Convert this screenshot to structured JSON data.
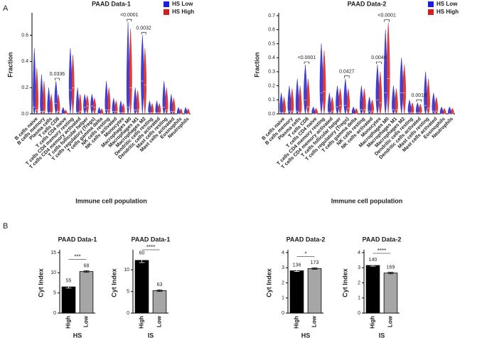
{
  "panel_labels": [
    "A",
    "B"
  ],
  "chart_data": [
    {
      "type": "violin",
      "title": "PAAD Data-1",
      "xlabel": "Immune cell population",
      "ylabel": "Fraction",
      "legend": "upper right",
      "categories": [
        "B cells naive",
        "B cells memory",
        "Plasma cells",
        "T cells CD8",
        "T cells CD4 naive",
        "T cells CD4 memory resting",
        "T cells CD4 memory activated",
        "T cells follicular helper",
        "T cells regulatory (Tregs)",
        "T cells gamma delta",
        "NK cells resting",
        "NK cells activated",
        "Monocytes",
        "Macrophages M0",
        "Macrophages M1",
        "Macrophages M2",
        "Dendritic cells resting",
        "Dendritic cells activated",
        "Mast cells resting",
        "Mast cells activated",
        "Eosinophils",
        "Neutrophils"
      ],
      "series": [
        {
          "name": "HS Low",
          "color": "#1f1fd1",
          "values": [
            0.05,
            0.02,
            0.01,
            0.08,
            0.0,
            0.18,
            0.01,
            0.05,
            0.06,
            0.0,
            0.03,
            0.02,
            0.01,
            0.05,
            0.03,
            0.25,
            0.01,
            0.01,
            0.05,
            0.02,
            0.0,
            0.0
          ],
          "upper": [
            0.5,
            0.3,
            0.2,
            0.25,
            0.05,
            0.5,
            0.2,
            0.15,
            0.15,
            0.05,
            0.25,
            0.12,
            0.1,
            0.7,
            0.2,
            0.6,
            0.1,
            0.1,
            0.25,
            0.15,
            0.05,
            0.05
          ]
        },
        {
          "name": "HS High",
          "color": "#d11f1f",
          "values": [
            0.03,
            0.02,
            0.01,
            0.02,
            0.0,
            0.2,
            0.02,
            0.06,
            0.05,
            0.0,
            0.03,
            0.02,
            0.01,
            0.2,
            0.03,
            0.22,
            0.01,
            0.01,
            0.03,
            0.02,
            0.0,
            0.0
          ],
          "upper": [
            0.35,
            0.25,
            0.15,
            0.15,
            0.03,
            0.45,
            0.15,
            0.14,
            0.12,
            0.04,
            0.2,
            0.1,
            0.08,
            0.65,
            0.18,
            0.5,
            0.08,
            0.08,
            0.2,
            0.12,
            0.04,
            0.04
          ]
        }
      ],
      "ylim": [
        0,
        0.75
      ],
      "yticks": [
        {
          "value": 0,
          "label": "0.0"
        },
        0.2,
        0.4,
        0.6
      ],
      "annotations": [
        {
          "category": "T cells CD8",
          "label": "0.0336"
        },
        {
          "category": "Macrophages M0",
          "label": "<0.0001"
        },
        {
          "category": "Macrophages M2",
          "label": "0.0032"
        }
      ]
    },
    {
      "type": "violin",
      "title": "PAAD Data-2",
      "xlabel": "Immune cell population",
      "ylabel": "Fraction",
      "legend": "upper right",
      "categories": [
        "B cells naive",
        "B cells memory",
        "Plasma cells",
        "T cells CD8",
        "T cells CD4 naive",
        "T cells CD4 memory resting",
        "T cells CD4 memory activated",
        "T cells follicular helper",
        "T cells regulatory (Tregs)",
        "T cells gamma delta",
        "NK cells resting",
        "NK cells activated",
        "Monocytes",
        "Macrophages M0",
        "Macrophages M1",
        "Macrophages M2",
        "Dendritic cells resting",
        "Dendritic cells activated",
        "Mast cells resting",
        "Mast cells activated",
        "Eosinophils",
        "Neutrophils"
      ],
      "series": [
        {
          "name": "HS Low",
          "color": "#1f1fd1",
          "values": [
            0.01,
            0.02,
            0.02,
            0.1,
            0.0,
            0.15,
            0.01,
            0.05,
            0.06,
            0.0,
            0.03,
            0.02,
            0.1,
            0.15,
            0.03,
            0.15,
            0.01,
            0.01,
            0.06,
            0.02,
            0.0,
            0.0
          ],
          "upper": [
            0.15,
            0.2,
            0.25,
            0.35,
            0.05,
            0.5,
            0.15,
            0.2,
            0.25,
            0.05,
            0.2,
            0.12,
            0.35,
            0.6,
            0.2,
            0.4,
            0.1,
            0.08,
            0.3,
            0.15,
            0.05,
            0.05
          ]
        },
        {
          "name": "HS High",
          "color": "#d11f1f",
          "values": [
            0.01,
            0.02,
            0.01,
            0.05,
            0.0,
            0.16,
            0.02,
            0.06,
            0.04,
            0.0,
            0.03,
            0.02,
            0.08,
            0.25,
            0.03,
            0.15,
            0.01,
            0.01,
            0.04,
            0.02,
            0.0,
            0.0
          ],
          "upper": [
            0.12,
            0.18,
            0.2,
            0.25,
            0.04,
            0.45,
            0.12,
            0.18,
            0.18,
            0.04,
            0.18,
            0.1,
            0.3,
            0.65,
            0.18,
            0.35,
            0.08,
            0.07,
            0.25,
            0.12,
            0.04,
            0.04
          ]
        }
      ],
      "ylim": [
        0,
        0.7
      ],
      "yticks": [
        {
          "value": 0,
          "label": "0.0"
        },
        0.1,
        0.2,
        0.3,
        0.4,
        0.5,
        0.6,
        0.7
      ],
      "annotations": [
        {
          "category": "T cells CD8",
          "label": "<0.0001"
        },
        {
          "category": "T cells regulatory (Tregs)",
          "label": "0.0427"
        },
        {
          "category": "Monocytes",
          "label": "0.0040"
        },
        {
          "category": "Macrophages M0",
          "label": "<0.0001"
        },
        {
          "category": "Dendritic cells activated",
          "label": "0.0018"
        }
      ]
    },
    {
      "type": "bar",
      "title": "PAAD Data-1",
      "xlabel": "HS",
      "ylabel": "Cyt Index",
      "categories": [
        "High",
        "Low"
      ],
      "values": [
        6.5,
        10.3
      ],
      "errors": [
        0.3,
        0.2
      ],
      "colors": [
        "#000000",
        "#a6a6a6"
      ],
      "n": [
        55,
        68
      ],
      "significance": "***",
      "ylim": [
        0,
        15
      ],
      "yticks": [
        0,
        5,
        10,
        15
      ]
    },
    {
      "type": "bar",
      "title": "PAAD Data-1",
      "xlabel": "IS",
      "ylabel": "Cyt Index",
      "categories": [
        "High",
        "Low"
      ],
      "values": [
        12.2,
        5.2
      ],
      "errors": [
        0.5,
        0.2
      ],
      "colors": [
        "#000000",
        "#a6a6a6"
      ],
      "n": [
        60,
        63
      ],
      "significance": "****",
      "ylim": [
        0,
        14
      ],
      "yticks": [
        0,
        5,
        10
      ]
    },
    {
      "type": "bar",
      "title": "PAAD Data-2",
      "xlabel": "HS",
      "ylabel": "Cyt Index",
      "categories": [
        "High",
        "Low"
      ],
      "values": [
        2.8,
        2.95
      ],
      "errors": [
        0.05,
        0.05
      ],
      "colors": [
        "#000000",
        "#a6a6a6"
      ],
      "n": [
        136,
        173
      ],
      "significance": "*",
      "ylim": [
        0,
        4
      ],
      "yticks": [
        0,
        1,
        2,
        3,
        4
      ]
    },
    {
      "type": "bar",
      "title": "PAAD Data-2",
      "xlabel": "IS",
      "ylabel": "Cyt Index",
      "categories": [
        "High",
        "Low"
      ],
      "values": [
        3.15,
        2.65
      ],
      "errors": [
        0.05,
        0.05
      ],
      "colors": [
        "#000000",
        "#a6a6a6"
      ],
      "n": [
        140,
        169
      ],
      "significance": "****",
      "ylim": [
        0,
        4
      ],
      "yticks": [
        0,
        1,
        2,
        3,
        4
      ]
    }
  ]
}
